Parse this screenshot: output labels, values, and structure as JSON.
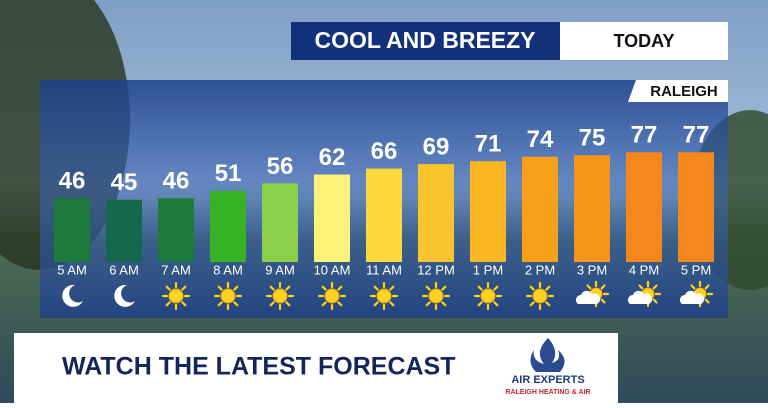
{
  "chart_data": {
    "type": "bar",
    "title": "COOL AND BREEZY",
    "subtitle": "TODAY",
    "location": "RALEIGH",
    "categories": [
      "5 AM",
      "6 AM",
      "7 AM",
      "8 AM",
      "9 AM",
      "10 AM",
      "11 AM",
      "12 PM",
      "1 PM",
      "2 PM",
      "3 PM",
      "4 PM",
      "5 PM"
    ],
    "values": [
      46,
      45,
      46,
      51,
      56,
      62,
      66,
      69,
      71,
      74,
      75,
      77,
      77
    ],
    "colors": [
      "#1e7a3c",
      "#15684a",
      "#1e7a3c",
      "#35b324",
      "#8cd04a",
      "#fdf27a",
      "#fcd83c",
      "#fbc42c",
      "#fbb622",
      "#f9a01a",
      "#f7951b",
      "#f5881c",
      "#f5881c"
    ],
    "icons": [
      "moon",
      "moon",
      "sun",
      "sun",
      "sun",
      "sun",
      "sun",
      "sun",
      "sun",
      "sun",
      "partly-cloudy",
      "partly-cloudy",
      "partly-cloudy"
    ],
    "ylim": [
      3,
      90
    ]
  },
  "banner": {
    "headline": "WATCH THE LATEST FORECAST",
    "logo_name": "AIR EXPERTS",
    "logo_tagline": "RALEIGH HEATING & AIR"
  }
}
